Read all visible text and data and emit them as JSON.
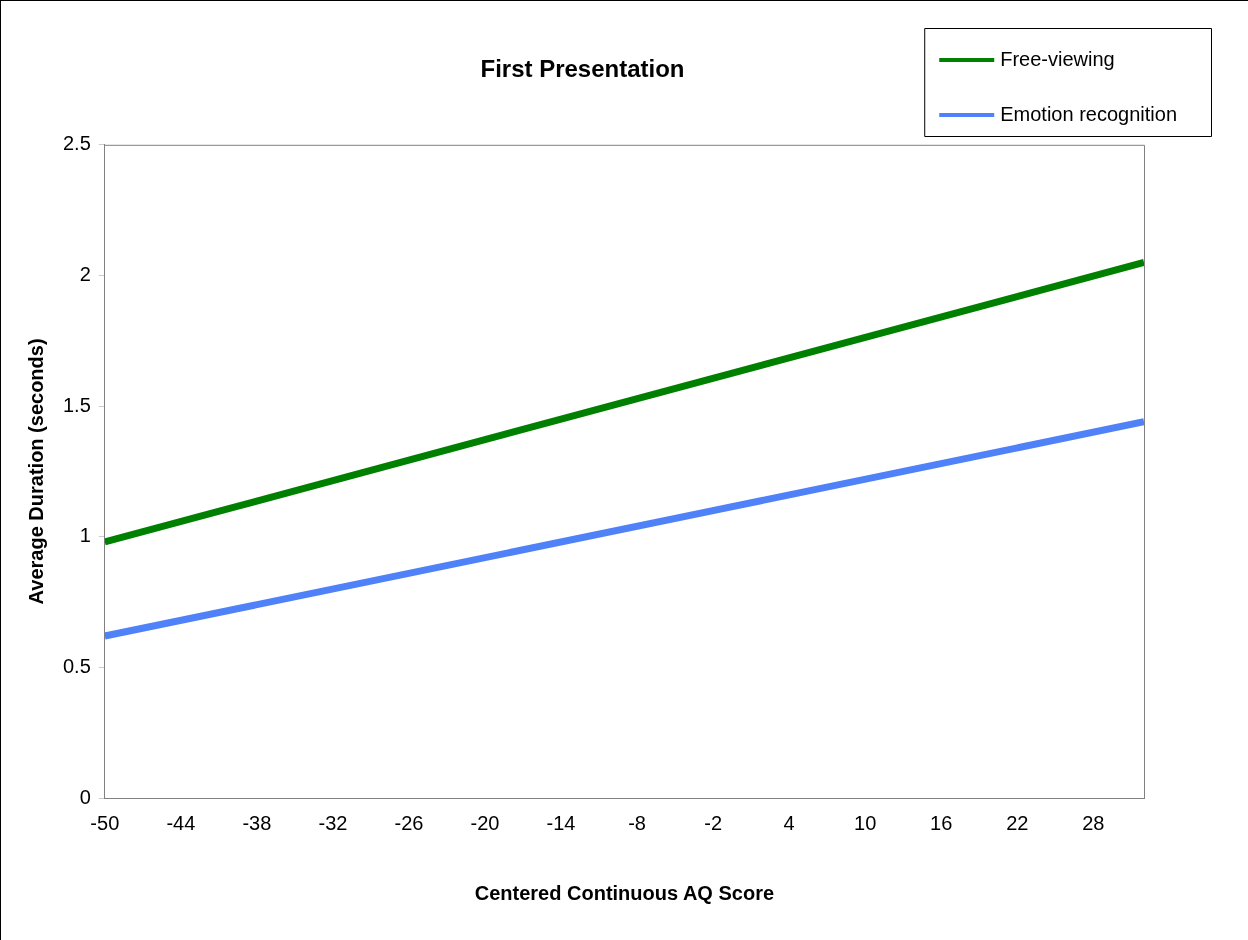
{
  "chart_data": {
    "type": "line",
    "title": "First Presentation",
    "xlabel": "Centered Continuous AQ Score",
    "ylabel": "Average Duration (seconds)",
    "x": [
      -50,
      32
    ],
    "series": [
      {
        "name": "Free-viewing",
        "color": "#008000",
        "values": [
          0.98,
          2.05
        ]
      },
      {
        "name": "Emotion recognition",
        "color": "#4f81f8",
        "values": [
          0.62,
          1.44
        ]
      }
    ],
    "xlim": [
      -50,
      32
    ],
    "xticks": [
      -50,
      -44,
      -38,
      -32,
      -26,
      -20,
      -14,
      -8,
      -2,
      4,
      10,
      16,
      22,
      28
    ],
    "ylim": [
      0,
      2.5
    ],
    "yticks": [
      0,
      0.5,
      1,
      1.5,
      2,
      2.5
    ],
    "grid": false,
    "legend": "top right",
    "marker": "none",
    "line_style": "solid"
  }
}
